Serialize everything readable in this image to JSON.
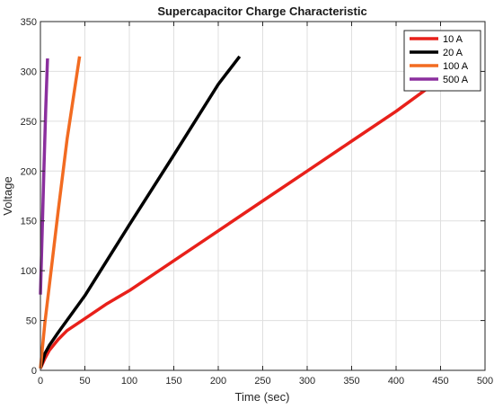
{
  "chart_data": {
    "type": "line",
    "title": "Supercapacitor Charge Characteristic",
    "xlabel": "Time (sec)",
    "ylabel": "Voltage",
    "xlim": [
      0,
      500
    ],
    "ylim": [
      0,
      350
    ],
    "xticks": [
      0,
      50,
      100,
      150,
      200,
      250,
      300,
      350,
      400,
      450,
      500
    ],
    "yticks": [
      0,
      50,
      100,
      150,
      200,
      250,
      300,
      350
    ],
    "grid": true,
    "legend_position": "top-right",
    "series": [
      {
        "name": "10 A",
        "color": "#e8201a",
        "x": [
          0,
          5,
          10,
          20,
          30,
          50,
          75,
          100,
          150,
          200,
          250,
          300,
          350,
          400,
          440
        ],
        "y": [
          2,
          12,
          20,
          31,
          40,
          52,
          67,
          80,
          110,
          140,
          170,
          200,
          230,
          260,
          286
        ]
      },
      {
        "name": "20 A",
        "color": "#000000",
        "x": [
          0,
          5,
          10,
          20,
          50,
          100,
          150,
          200,
          224
        ],
        "y": [
          2,
          17,
          25,
          38,
          75,
          146,
          216,
          287,
          315
        ]
      },
      {
        "name": "100 A",
        "color": "#f26b21",
        "x": [
          0,
          5,
          10,
          20,
          30,
          44
        ],
        "y": [
          2,
          48,
          85,
          160,
          232,
          315
        ]
      },
      {
        "name": "500 A",
        "color": "#8b2f9e",
        "x": [
          0,
          2,
          4,
          6,
          8
        ],
        "y": [
          76,
          140,
          205,
          262,
          313
        ]
      }
    ]
  }
}
